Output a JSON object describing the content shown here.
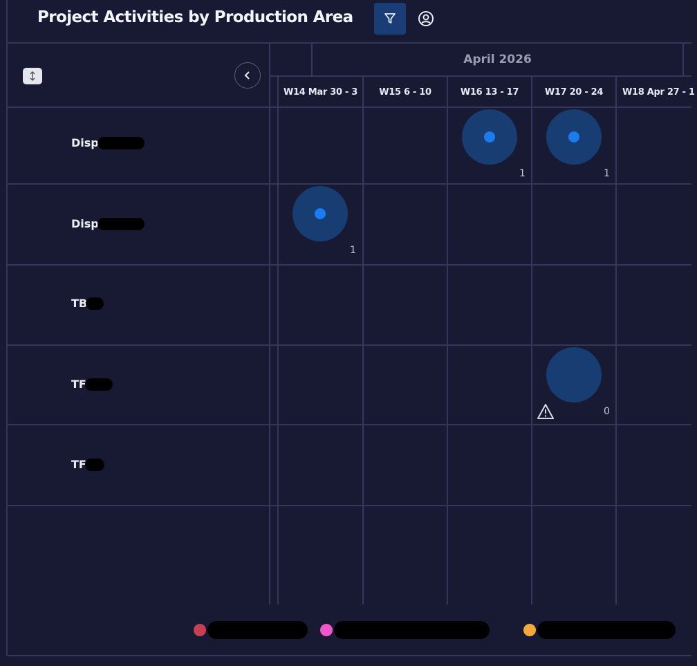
{
  "header": {
    "title": "Project Activities by Production Area",
    "filter_icon": "filter-icon",
    "user_icon": "user-circle-icon"
  },
  "sidebar": {
    "sort_icon": "sort-vertical-icon",
    "collapse_icon": "chevron-left-icon",
    "rows": [
      {
        "label": "Disp"
      },
      {
        "label": "Disp"
      },
      {
        "label": "TB"
      },
      {
        "label": "TF"
      },
      {
        "label": "TF"
      }
    ]
  },
  "timeline": {
    "month": "April 2026",
    "weeks": [
      "W14 Mar 30 - 3",
      "W15 6 - 10",
      "W16 13 - 17",
      "W17 20 - 24",
      "W18 Apr 27 - 1"
    ],
    "cells": [
      {
        "row": 0,
        "week": 2,
        "count": "1",
        "has_dot": true,
        "warning": false
      },
      {
        "row": 0,
        "week": 3,
        "count": "1",
        "has_dot": true,
        "warning": false
      },
      {
        "row": 1,
        "week": 0,
        "count": "1",
        "has_dot": true,
        "warning": false
      },
      {
        "row": 3,
        "week": 3,
        "count": "0",
        "has_dot": false,
        "warning": true
      }
    ]
  },
  "legend": {
    "items": [
      {
        "color": "#c8404f"
      },
      {
        "color": "#f056c8"
      },
      {
        "color": "#f5a93a"
      }
    ]
  },
  "colors": {
    "background": "#181a33",
    "grid": "#34375a",
    "bubble": "#173d73",
    "dot": "#1a7cf0",
    "accent": "#1b3d77"
  }
}
